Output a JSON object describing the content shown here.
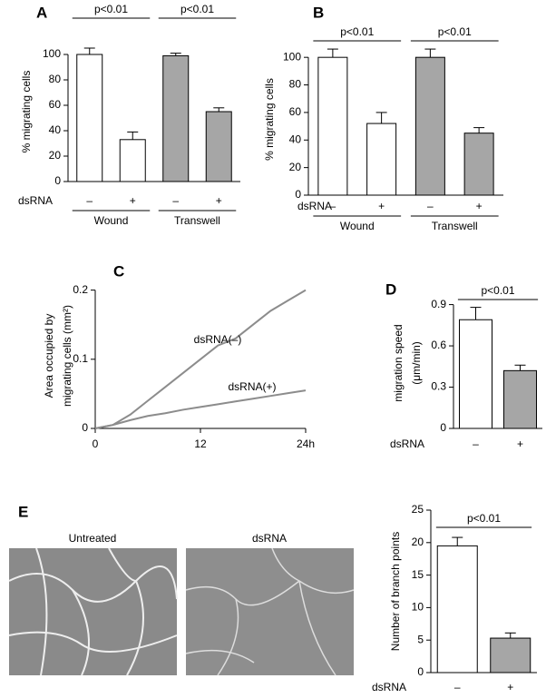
{
  "chart_data": [
    {
      "type": "bar",
      "panel": "A",
      "ylabel": "% migrating cells",
      "categories": [
        "–",
        "+",
        "–",
        "+"
      ],
      "row_label": "dsRNA",
      "groups": [
        "Wound",
        "Transwell"
      ],
      "values": [
        100,
        33,
        99,
        55
      ],
      "errors": [
        5,
        6,
        2,
        3
      ],
      "colors": [
        "#ffffff",
        "#ffffff",
        "#a6a6a6",
        "#a6a6a6"
      ],
      "ylim": [
        0,
        110
      ],
      "yticks": [
        0,
        20,
        40,
        60,
        80,
        100
      ],
      "annotations": [
        "p<0.01",
        "p<0.01"
      ]
    },
    {
      "type": "bar",
      "panel": "B",
      "ylabel": "% migrating cells",
      "categories": [
        "–",
        "+",
        "–",
        "+"
      ],
      "row_label": "dsRNA",
      "groups": [
        "Wound",
        "Transwell"
      ],
      "values": [
        100,
        52,
        100,
        45
      ],
      "errors": [
        6,
        8,
        6,
        4
      ],
      "colors": [
        "#ffffff",
        "#ffffff",
        "#a6a6a6",
        "#a6a6a6"
      ],
      "ylim": [
        0,
        110
      ],
      "yticks": [
        0,
        20,
        40,
        60,
        80,
        100
      ],
      "annotations": [
        "p<0.01",
        "p<0.01"
      ]
    },
    {
      "type": "line",
      "panel": "C",
      "ylabel": [
        "Area occupied by",
        "migrating cells (mm²)"
      ],
      "x": [
        0,
        2,
        4,
        6,
        8,
        10,
        12,
        14,
        16,
        18,
        20,
        22,
        24
      ],
      "series": [
        {
          "name": "dsRNA(–)",
          "color": "#8c8c8c",
          "values": [
            0,
            0.005,
            0.02,
            0.04,
            0.06,
            0.08,
            0.1,
            0.12,
            0.13,
            0.15,
            0.17,
            0.185,
            0.2
          ]
        },
        {
          "name": "dsRNA(+)",
          "color": "#8c8c8c",
          "values": [
            0,
            0.005,
            0.012,
            0.018,
            0.022,
            0.027,
            0.031,
            0.035,
            0.039,
            0.043,
            0.047,
            0.051,
            0.055
          ]
        }
      ],
      "xlim": [
        0,
        24
      ],
      "xticks": [
        0,
        12,
        {
          "value": 24,
          "label": "24h"
        }
      ],
      "ylim": [
        0,
        0.21
      ],
      "yticks": [
        0,
        0.1,
        0.2
      ]
    },
    {
      "type": "bar",
      "panel": "D",
      "ylabel": [
        "migration speed",
        "(μm/min)"
      ],
      "categories": [
        "–",
        "+"
      ],
      "row_label": "dsRNA",
      "values": [
        0.79,
        0.42
      ],
      "errors": [
        0.09,
        0.04
      ],
      "colors": [
        "#ffffff",
        "#a6a6a6"
      ],
      "ylim": [
        0,
        0.95
      ],
      "yticks": [
        0,
        0.3,
        0.6,
        0.9
      ],
      "annotations": [
        "p<0.01"
      ]
    },
    {
      "type": "bar",
      "panel": "E",
      "image_labels": [
        "Untreated",
        "dsRNA"
      ],
      "ylabel": "Number of branch points",
      "categories": [
        "–",
        "+"
      ],
      "row_label": "dsRNA",
      "values": [
        19.5,
        5.3
      ],
      "errors": [
        1.3,
        0.8
      ],
      "colors": [
        "#ffffff",
        "#a6a6a6"
      ],
      "ylim": [
        0,
        25
      ],
      "yticks": [
        0,
        5,
        10,
        15,
        20,
        25
      ],
      "annotations": [
        "p<0.01"
      ]
    }
  ]
}
